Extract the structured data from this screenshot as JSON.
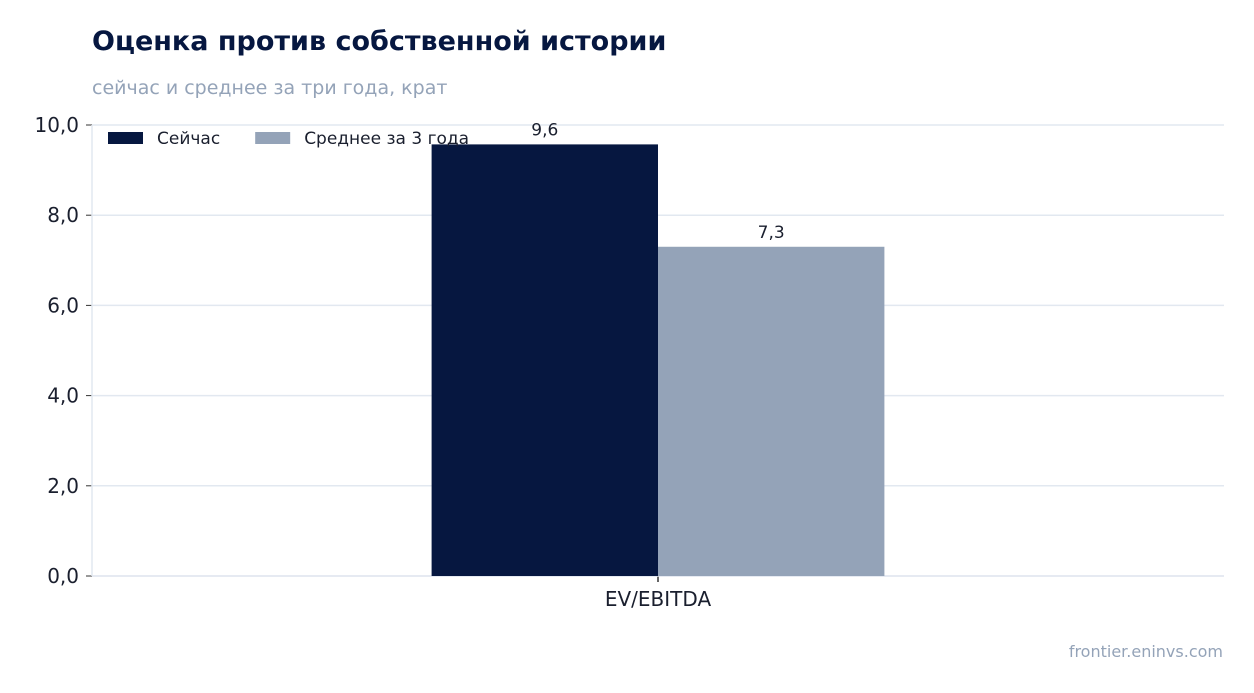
{
  "title": "Оценка против собственной истории",
  "subtitle": "сейчас и среднее за три года, крат",
  "source": "frontier.eninvs.com",
  "chart_data": {
    "type": "bar",
    "categories": [
      "EV/EBITDA"
    ],
    "series": [
      {
        "name": "Сейчас",
        "values": [
          9.57
        ],
        "label": "9,6",
        "color": "#061740"
      },
      {
        "name": "Среднее за 3 года",
        "values": [
          7.3
        ],
        "label": "7,3",
        "color": "#94a3b8"
      }
    ],
    "ylim": [
      0,
      10
    ],
    "yticks": [
      0,
      2,
      4,
      6,
      8,
      10
    ],
    "ytick_labels": [
      "0,0",
      "2,0",
      "4,0",
      "6,0",
      "8,0",
      "10,0"
    ],
    "grid": true,
    "legend_position": "top-left",
    "xlabel": "",
    "ylabel": ""
  }
}
